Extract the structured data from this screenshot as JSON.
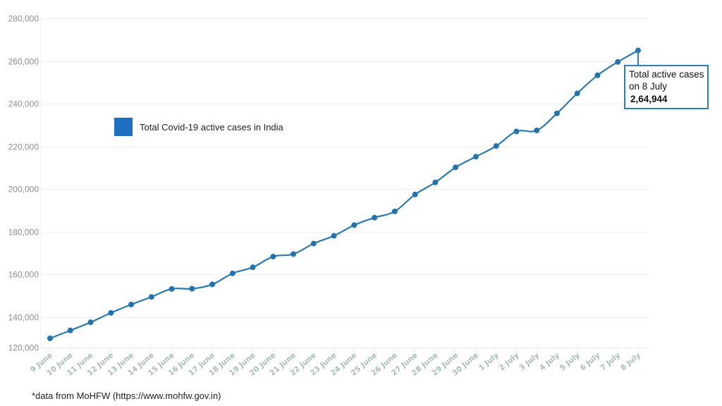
{
  "chart_data": {
    "type": "line",
    "title": "",
    "xlabel": "",
    "ylabel": "",
    "ylim": [
      120000,
      280000
    ],
    "grid": true,
    "legend_position": "upper-left (inside)",
    "yticks": [
      "120,000",
      "140,000",
      "160,000",
      "180,000",
      "200,000",
      "220,000",
      "240,000",
      "260,000",
      "280,000"
    ],
    "categories": [
      "9 June",
      "10 June",
      "11 June",
      "12 June",
      "13 June",
      "14 June",
      "15 June",
      "16 June",
      "17 June",
      "18 June",
      "19 June",
      "20 June",
      "21 June",
      "22 June",
      "23 June",
      "24 June",
      "25 June",
      "26 June",
      "27 June",
      "28 June",
      "29 June",
      "30 June",
      "1 July",
      "2 July",
      "3 July",
      "4 July",
      "5 July",
      "6 July",
      "7 July",
      "8 July"
    ],
    "series": [
      {
        "name": "Total Covid-19 active cases in India",
        "color": "#2a7ab0",
        "values": [
          129917,
          133632,
          137448,
          141842,
          145779,
          149348,
          153106,
          153178,
          155227,
          160384,
          163248,
          168269,
          169451,
          174387,
          178014,
          183022,
          186514,
          189463,
          197387,
          203051,
          210120,
          215125,
          220114,
          226947,
          227439,
          235433,
          244814,
          253287,
          259557,
          264944
        ]
      }
    ],
    "annotations": [
      {
        "target": "8 July",
        "text": [
          "Total active cases",
          "on 8 July",
          "2,64,944"
        ]
      }
    ]
  },
  "legend": {
    "label": "Total Covid-19 active cases in India",
    "swatch_color": "#1f6fc0"
  },
  "callout": {
    "line1": "Total active cases",
    "line2": "on 8 July",
    "value": "2,64,944",
    "border_color": "#2e7fb8"
  },
  "footnote": "*data from MoHFW (https://www.mohfw.gov.in)"
}
